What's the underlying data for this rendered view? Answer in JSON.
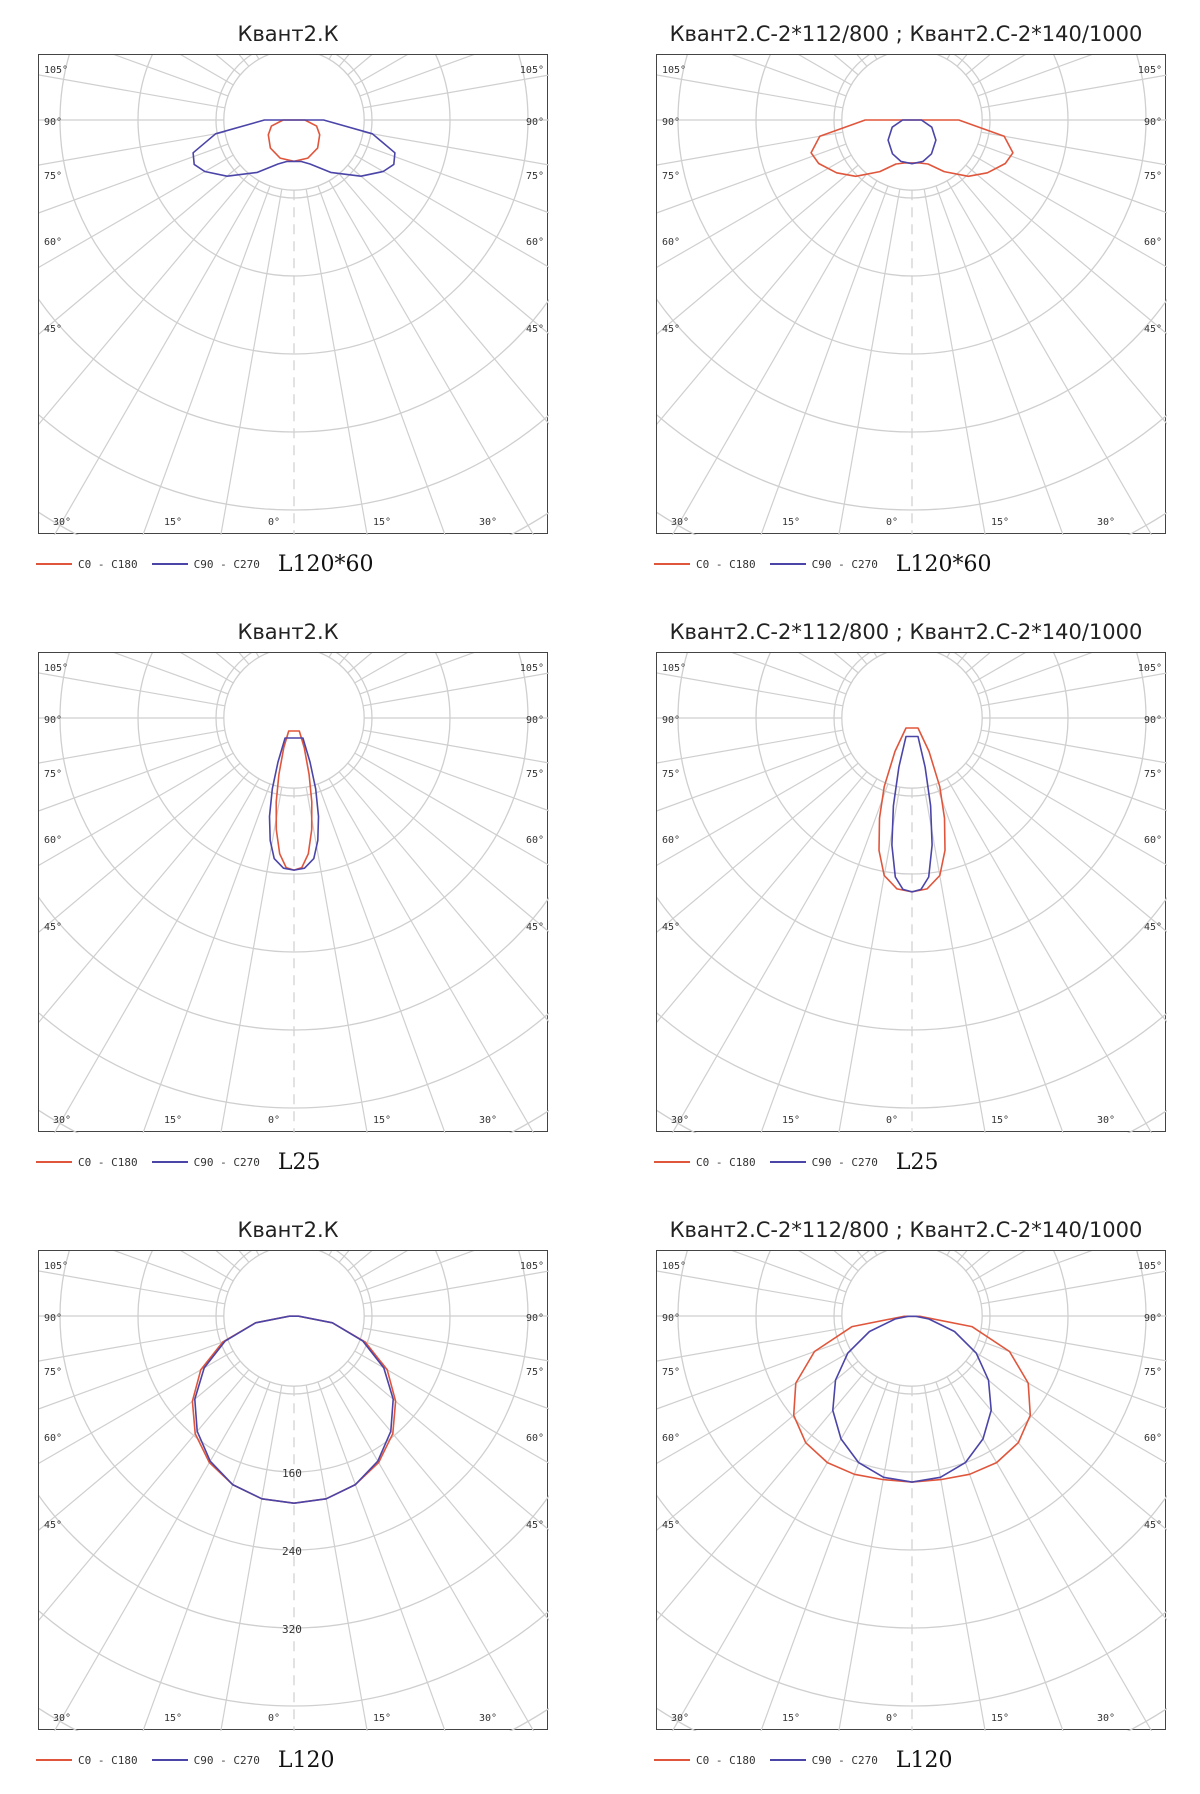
{
  "colors": {
    "c0": "#e0563c",
    "c90": "#4b45a8",
    "grid": "#cfcfcf",
    "frame": "#444444"
  },
  "panels": [
    {
      "title": "Квант2.К",
      "lamp_label": "L120*60",
      "legend": [
        "C0 - C180",
        "C90 - C270"
      ],
      "chart_data": {
        "type": "line",
        "polar": true,
        "series": [
          {
            "name": "C0 - C180",
            "values": [
              [
                0,
                0.53
              ],
              [
                20,
                0.52
              ],
              [
                40,
                0.47
              ],
              [
                60,
                0.38
              ],
              [
                75,
                0.3
              ],
              [
                90,
                0.14
              ]
            ]
          },
          {
            "name": "C90 - C270",
            "values": [
              [
                0,
                0.53
              ],
              [
                10,
                0.54
              ],
              [
                20,
                0.6
              ],
              [
                35,
                0.82
              ],
              [
                50,
                1.12
              ],
              [
                60,
                1.32
              ],
              [
                66,
                1.4
              ],
              [
                72,
                1.36
              ],
              [
                80,
                1.02
              ],
              [
                90,
                0.38
              ],
              [
                97,
                0.0
              ]
            ]
          }
        ],
        "rings": [
          "",
          "",
          "",
          "",
          "",
          ""
        ],
        "angle_labels": {
          "top_left": "105°",
          "top_right": "105°",
          "left": [
            "90°",
            "75°",
            "60°",
            "45°"
          ],
          "right": [
            "90°",
            "75°",
            "60°",
            "45°"
          ],
          "bottom": [
            "30°",
            "15°",
            "0°",
            "15°",
            "30°"
          ]
        }
      }
    },
    {
      "title": "Квант2.С-2*112/800 ; Квант2.С-2*140/1000",
      "lamp_label": "L120*60",
      "legend": [
        "C0 - C180",
        "C90 - C270"
      ],
      "chart_data": {
        "type": "line",
        "polar": true,
        "series": [
          {
            "name": "C0 - C180",
            "values": [
              [
                0,
                0.55
              ],
              [
                10,
                0.56
              ],
              [
                20,
                0.6
              ],
              [
                32,
                0.78
              ],
              [
                45,
                1.02
              ],
              [
                55,
                1.18
              ],
              [
                65,
                1.32
              ],
              [
                72,
                1.36
              ],
              [
                80,
                1.2
              ],
              [
                90,
                0.6
              ],
              [
                97,
                0.0
              ]
            ]
          },
          {
            "name": "C90 - C270",
            "values": [
              [
                0,
                0.56
              ],
              [
                15,
                0.55
              ],
              [
                30,
                0.5
              ],
              [
                50,
                0.4
              ],
              [
                70,
                0.27
              ],
              [
                90,
                0.12
              ]
            ]
          }
        ],
        "rings": [
          "",
          "",
          "",
          "",
          "",
          ""
        ],
        "angle_labels": {
          "top_left": "105°",
          "top_right": "105°",
          "left": [
            "90°",
            "75°",
            "60°",
            "45°"
          ],
          "right": [
            "90°",
            "75°",
            "60°",
            "45°"
          ],
          "bottom": [
            "30°",
            "15°",
            "0°",
            "15°",
            "30°"
          ]
        }
      }
    },
    {
      "title": "Квант2.К",
      "lamp_label": "L25",
      "legend": [
        "C0 - C180",
        "C90 - C270"
      ],
      "chart_data": {
        "type": "line",
        "polar": true,
        "series": [
          {
            "name": "C0 - C180",
            "values": [
              [
                0,
                1.95
              ],
              [
                3,
                1.92
              ],
              [
                6,
                1.75
              ],
              [
                9,
                1.45
              ],
              [
                12,
                1.1
              ],
              [
                15,
                0.75
              ],
              [
                19,
                0.4
              ],
              [
                22,
                0.18
              ]
            ]
          },
          {
            "name": "C90 - C270",
            "values": [
              [
                0,
                1.95
              ],
              [
                4,
                1.93
              ],
              [
                8,
                1.82
              ],
              [
                11,
                1.6
              ],
              [
                14,
                1.3
              ],
              [
                17,
                0.95
              ],
              [
                20,
                0.6
              ],
              [
                24,
                0.28
              ]
            ]
          }
        ],
        "rings": [
          "",
          "",
          "",
          "",
          "",
          ""
        ],
        "angle_labels": {
          "top_left": "105°",
          "top_right": "105°",
          "left": [
            "90°",
            "75°",
            "60°",
            "45°"
          ],
          "right": [
            "90°",
            "75°",
            "60°",
            "45°"
          ],
          "bottom": [
            "30°",
            "15°",
            "0°",
            "15°",
            "30°"
          ]
        }
      }
    },
    {
      "title": "Квант2.С-2*112/800 ; Квант2.С-2*140/1000",
      "lamp_label": "L25",
      "legend": [
        "C0 - C180",
        "C90 - C270"
      ],
      "chart_data": {
        "type": "line",
        "polar": true,
        "series": [
          {
            "name": "C0 - C180",
            "values": [
              [
                0,
                2.23
              ],
              [
                5,
                2.2
              ],
              [
                10,
                2.05
              ],
              [
                14,
                1.75
              ],
              [
                18,
                1.35
              ],
              [
                22,
                0.95
              ],
              [
                27,
                0.48
              ],
              [
                31,
                0.15
              ]
            ]
          },
          {
            "name": "C90 - C270",
            "values": [
              [
                0,
                2.23
              ],
              [
                3,
                2.2
              ],
              [
                6,
                2.05
              ],
              [
                9,
                1.65
              ],
              [
                12,
                1.15
              ],
              [
                15,
                0.65
              ],
              [
                18,
                0.25
              ]
            ]
          }
        ],
        "rings": [
          "",
          "",
          "",
          "",
          "",
          ""
        ],
        "angle_labels": {
          "top_left": "105°",
          "top_right": "105°",
          "left": [
            "90°",
            "75°",
            "60°",
            "45°"
          ],
          "right": [
            "90°",
            "75°",
            "60°",
            "45°"
          ],
          "bottom": [
            "30°",
            "15°",
            "0°",
            "15°",
            "30°"
          ]
        }
      }
    },
    {
      "title": "Квант2.К",
      "lamp_label": "L120",
      "legend": [
        "C0 - C180",
        "C90 - C270"
      ],
      "chart_data": {
        "type": "line",
        "polar": true,
        "series": [
          {
            "name": "C0 - C180",
            "values": [
              [
                0,
                2.4
              ],
              [
                10,
                2.38
              ],
              [
                20,
                2.3
              ],
              [
                30,
                2.17
              ],
              [
                40,
                1.97
              ],
              [
                50,
                1.7
              ],
              [
                60,
                1.38
              ],
              [
                70,
                0.97
              ],
              [
                80,
                0.5
              ],
              [
                88,
                0.06
              ]
            ]
          },
          {
            "name": "C90 - C270",
            "values": [
              [
                0,
                2.4
              ],
              [
                10,
                2.38
              ],
              [
                20,
                2.3
              ],
              [
                30,
                2.15
              ],
              [
                40,
                1.93
              ],
              [
                50,
                1.66
              ],
              [
                60,
                1.33
              ],
              [
                70,
                0.94
              ],
              [
                80,
                0.5
              ],
              [
                88,
                0.06
              ]
            ]
          }
        ],
        "rings": [
          "",
          "",
          "160",
          "240",
          "320",
          ""
        ],
        "angle_labels": {
          "top_left": "105°",
          "top_right": "105°",
          "left": [
            "90°",
            "75°",
            "60°",
            "45°"
          ],
          "right": [
            "90°",
            "75°",
            "60°",
            "45°"
          ],
          "bottom": [
            "30°",
            "15°",
            "0°",
            "15°",
            "30°"
          ]
        }
      }
    },
    {
      "title": "Квант2.С-2*112/800 ; Квант2.С-2*140/1000",
      "lamp_label": "L120",
      "legend": [
        "C0 - C180",
        "C90 - C270"
      ],
      "chart_data": {
        "type": "line",
        "polar": true,
        "series": [
          {
            "name": "C0 - C180",
            "values": [
              [
                0,
                2.13
              ],
              [
                10,
                2.13
              ],
              [
                20,
                2.16
              ],
              [
                30,
                2.17
              ],
              [
                40,
                2.12
              ],
              [
                50,
                1.98
              ],
              [
                60,
                1.72
              ],
              [
                70,
                1.33
              ],
              [
                80,
                0.78
              ],
              [
                88,
                0.1
              ]
            ]
          },
          {
            "name": "C90 - C270",
            "values": [
              [
                0,
                2.13
              ],
              [
                10,
                2.1
              ],
              [
                20,
                2.0
              ],
              [
                30,
                1.82
              ],
              [
                40,
                1.58
              ],
              [
                50,
                1.28
              ],
              [
                60,
                0.95
              ],
              [
                70,
                0.58
              ],
              [
                80,
                0.22
              ],
              [
                85,
                0.05
              ]
            ]
          }
        ],
        "rings": [
          "",
          "",
          "",
          "",
          "",
          ""
        ],
        "angle_labels": {
          "top_left": "105°",
          "top_right": "105°",
          "left": [
            "90°",
            "75°",
            "60°",
            "45°"
          ],
          "right": [
            "90°",
            "75°",
            "60°",
            "45°"
          ],
          "bottom": [
            "30°",
            "15°",
            "0°",
            "15°",
            "30°"
          ]
        }
      }
    }
  ]
}
